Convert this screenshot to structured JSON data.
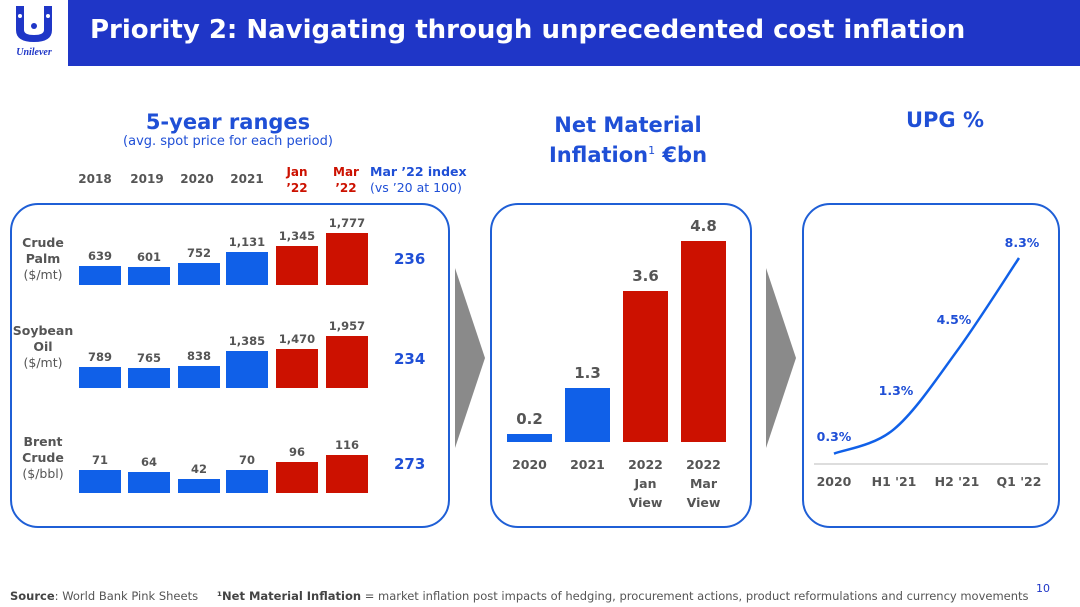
{
  "header": {
    "logo_text": "Unilever",
    "title": "Priority 2: Navigating through unprecedented cost inflation"
  },
  "ranges": {
    "title": "5-year ranges",
    "subtitle": "(avg. spot price for each period)",
    "periods": [
      "2018",
      "2019",
      "2020",
      "2021"
    ],
    "period_jan": [
      "Jan",
      "’22"
    ],
    "period_mar": [
      "Mar",
      "’22"
    ],
    "index_header": "Mar ’22 index",
    "index_sub": "(vs ’20 at 100)"
  },
  "net_material": {
    "title_line1": "Net Material",
    "title_line2": "Inflation",
    "title_sup": "1",
    "title_unit": " €bn"
  },
  "upg": {
    "title": "UPG %"
  },
  "chart_data": [
    {
      "type": "bar",
      "title": "5-year ranges",
      "subtitle": "(avg. spot price for each period)",
      "categories": [
        "2018",
        "2019",
        "2020",
        "2021",
        "Jan ’22",
        "Mar ’22"
      ],
      "series": [
        {
          "name": "Crude Palm",
          "unit": "($/mt)",
          "values": [
            639,
            601,
            752,
            1131,
            1345,
            1777
          ],
          "index": "236"
        },
        {
          "name": "Soybean Oil",
          "unit": "($/mt)",
          "values": [
            789,
            765,
            838,
            1385,
            1470,
            1957
          ],
          "index": "234"
        },
        {
          "name": "Brent Crude",
          "unit": "($/bbl)",
          "values": [
            71,
            64,
            42,
            70,
            96,
            116
          ],
          "index": "273"
        }
      ],
      "value_labels": [
        [
          "639",
          "601",
          "752",
          "1,131",
          "1,345",
          "1,777"
        ],
        [
          "789",
          "765",
          "838",
          "1,385",
          "1,470",
          "1,957"
        ],
        [
          "71",
          "64",
          "42",
          "70",
          "96",
          "116"
        ]
      ],
      "colors": [
        "#1060e8",
        "#1060e8",
        "#1060e8",
        "#1060e8",
        "#cc1100",
        "#cc1100"
      ]
    },
    {
      "type": "bar",
      "title": "Net Material Inflation¹ €bn",
      "categories": [
        [
          "2020"
        ],
        [
          "2021"
        ],
        [
          "2022",
          "Jan",
          "View"
        ],
        [
          "2022",
          "Mar",
          "View"
        ]
      ],
      "values": [
        0.2,
        1.3,
        3.6,
        4.8
      ],
      "value_labels": [
        "0.2",
        "1.3",
        "3.6",
        "4.8"
      ],
      "colors": [
        "#1060e8",
        "#1060e8",
        "#cc1100",
        "#cc1100"
      ]
    },
    {
      "type": "line",
      "title": "UPG %",
      "categories": [
        "2020",
        "H1 '21",
        "H2 '21",
        "Q1 '22"
      ],
      "values": [
        0.3,
        1.3,
        4.5,
        8.3
      ],
      "value_labels": [
        "0.3%",
        "1.3%",
        "4.5%",
        "8.3%"
      ],
      "color": "#1060e8"
    }
  ],
  "footer": {
    "source_label": "Source",
    "source_text": ": World Bank Pink Sheets",
    "note_label": "¹Net Material Inflation",
    "note_text": " = market inflation post impacts of hedging, procurement actions, product reformulations and currency movements",
    "page_number": "10"
  }
}
